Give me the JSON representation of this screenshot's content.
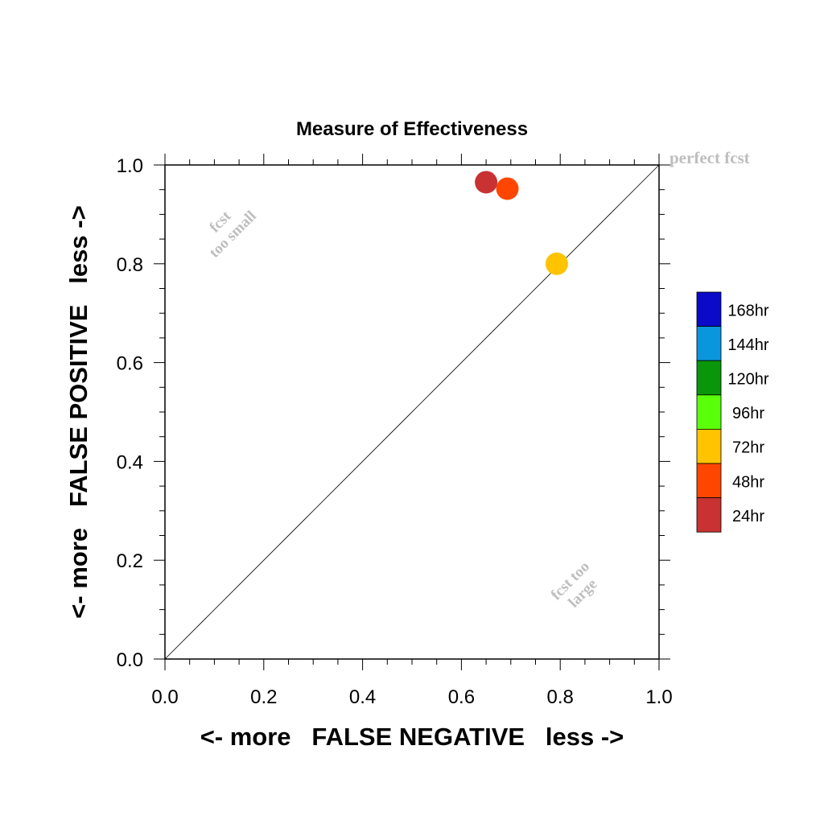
{
  "chart_data": {
    "type": "scatter",
    "title": "Measure of Effectiveness",
    "xlabel": "<- more   FALSE NEGATIVE   less ->",
    "ylabel": "<- more   FALSE POSITIVE   less ->",
    "xlim": [
      0.0,
      1.0
    ],
    "ylim": [
      0.0,
      1.0
    ],
    "xticks": [
      "0.0",
      "0.2",
      "0.4",
      "0.6",
      "0.8",
      "1.0"
    ],
    "yticks": [
      "0.0",
      "0.2",
      "0.4",
      "0.6",
      "0.8",
      "1.0"
    ],
    "grid": false,
    "diagonal_line": true,
    "annotations": {
      "perfect": "perfect fcst",
      "too_small_line1": "fcst",
      "too_small_line2": "too small",
      "too_large_line1": "fcst too",
      "too_large_line2": "large"
    },
    "legend_position": "right",
    "legend": [
      {
        "label": "168hr",
        "color": "#0a0ac8"
      },
      {
        "label": "144hr",
        "color": "#0a96dc"
      },
      {
        "label": "120hr",
        "color": "#0a960a"
      },
      {
        "label": "96hr",
        "color": "#5aff0a"
      },
      {
        "label": "72hr",
        "color": "#ffc300"
      },
      {
        "label": "48hr",
        "color": "#ff4600"
      },
      {
        "label": "24hr",
        "color": "#c83232"
      }
    ],
    "points": [
      {
        "label": "24hr",
        "x": 0.65,
        "y": 0.965,
        "color": "#c83232"
      },
      {
        "label": "48hr",
        "x": 0.693,
        "y": 0.952,
        "color": "#ff4600"
      },
      {
        "label": "72hr",
        "x": 0.793,
        "y": 0.8,
        "color": "#ffc300"
      }
    ],
    "annotation_color": "#bebebe"
  }
}
